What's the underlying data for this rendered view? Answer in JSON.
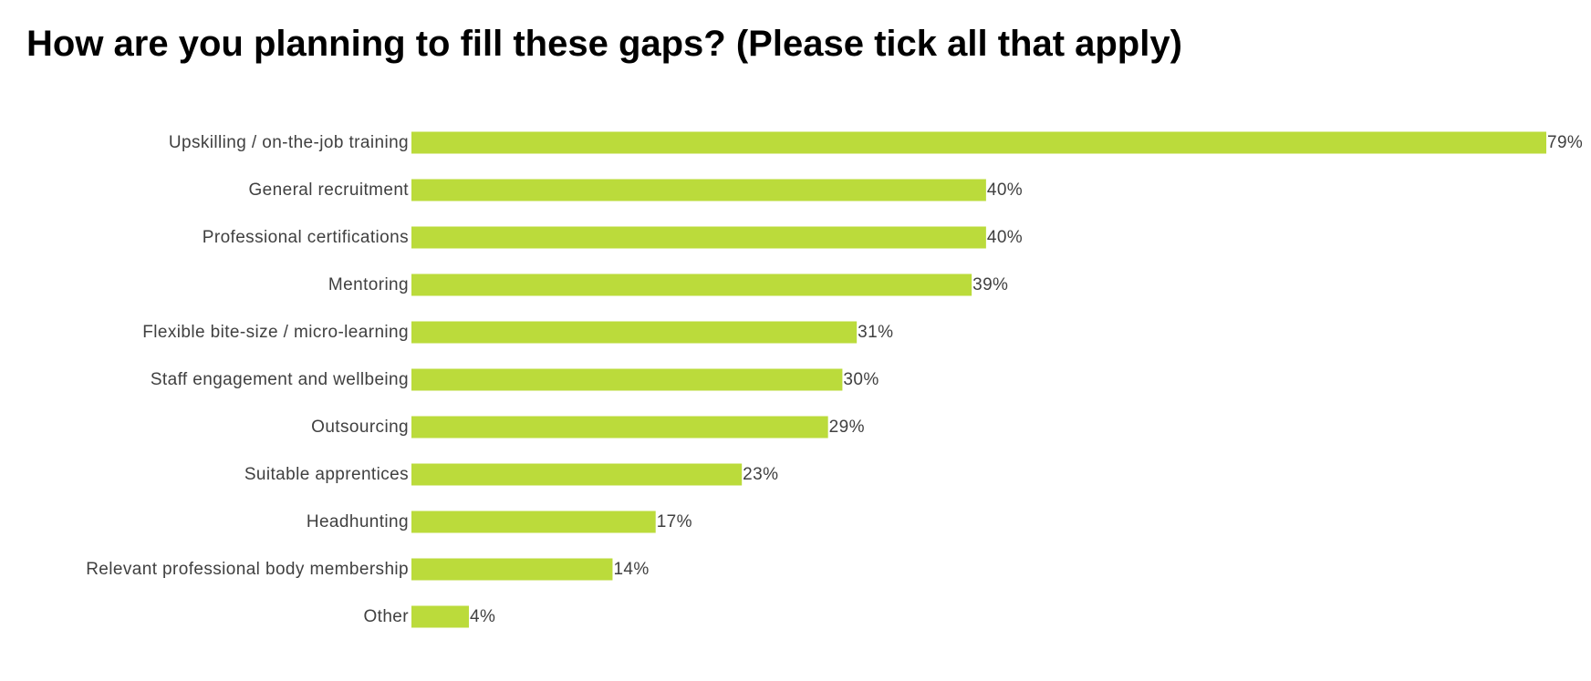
{
  "chart_data": {
    "type": "bar",
    "orientation": "horizontal",
    "title": "How are you planning to fill these gaps? (Please tick all that apply)",
    "categories": [
      "Upskilling / on-the-job training",
      "General recruitment",
      "Professional certifications",
      "Mentoring",
      "Flexible bite-size / micro-learning",
      "Staff engagement and wellbeing",
      "Outsourcing",
      "Suitable apprentices",
      "Headhunting",
      "Relevant professional body membership",
      "Other"
    ],
    "values": [
      79,
      40,
      40,
      39,
      31,
      30,
      29,
      23,
      17,
      14,
      4
    ],
    "value_labels": [
      "79%",
      "40%",
      "40%",
      "39%",
      "31%",
      "30%",
      "29%",
      "23%",
      "17%",
      "14%",
      "4%"
    ],
    "xlim": [
      0,
      79
    ],
    "grid": false,
    "legend": "none",
    "bar_color": "#bbdb3b",
    "text_color": "#404040"
  }
}
